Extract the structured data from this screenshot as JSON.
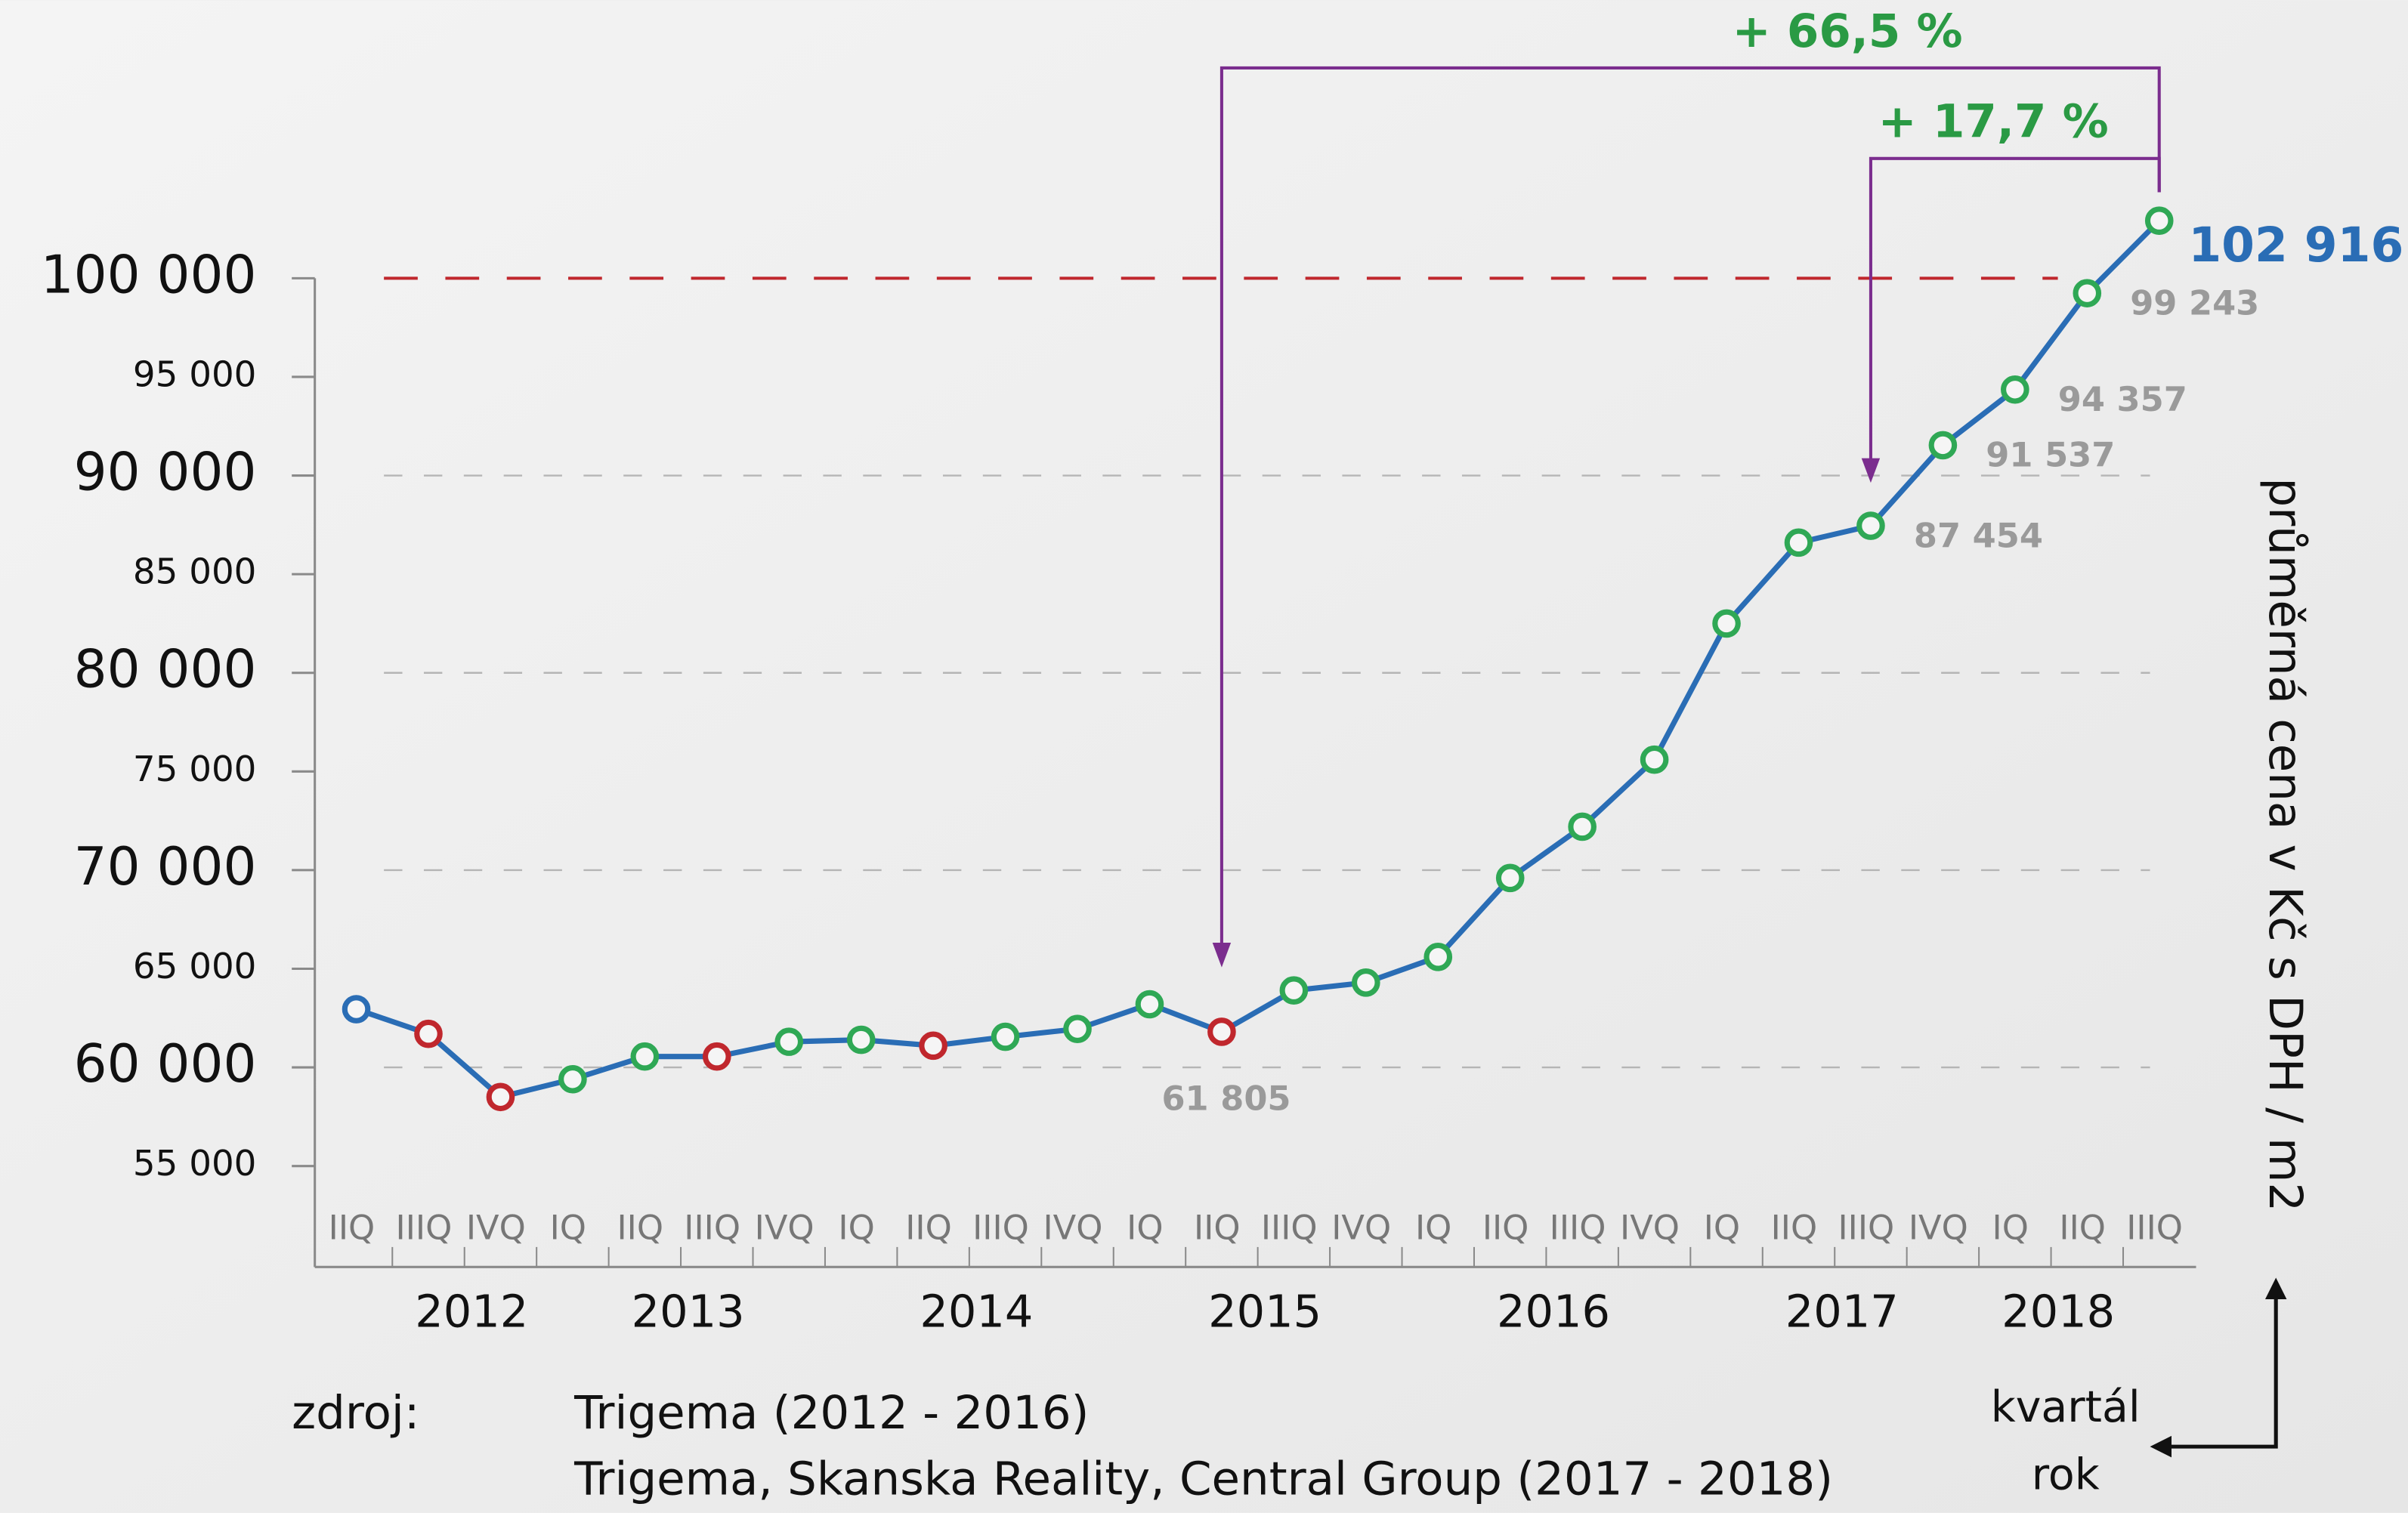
{
  "chart_data": {
    "type": "line",
    "categories": [
      "IIQ",
      "IIIQ",
      "IVQ",
      "IQ",
      "IIQ",
      "IIIQ",
      "IVQ",
      "IQ",
      "IIQ",
      "IIIQ",
      "IVQ",
      "IQ",
      "IIQ",
      "IIIQ",
      "IVQ",
      "IQ",
      "IIQ",
      "IIIQ",
      "IVQ",
      "IQ",
      "IIQ",
      "IIIQ",
      "IVQ",
      "IQ",
      "IIQ",
      "IIIQ"
    ],
    "years": [
      null,
      null,
      "2012",
      null,
      null,
      "2013",
      null,
      null,
      null,
      "2014",
      null,
      null,
      null,
      "2015",
      null,
      null,
      null,
      "2016",
      null,
      null,
      null,
      "2017",
      null,
      null,
      "2018",
      null
    ],
    "series": [
      {
        "name": "průměrná cena",
        "color": "#2a6db5",
        "values": [
          62950,
          61700,
          58500,
          59400,
          60550,
          60550,
          61300,
          61400,
          61100,
          61550,
          61950,
          63200,
          61805,
          63900,
          64300,
          65600,
          69600,
          72200,
          75600,
          82500,
          86600,
          87454,
          91537,
          94357,
          99243,
          102916
        ],
        "value_labels": [
          null,
          null,
          null,
          null,
          null,
          null,
          null,
          null,
          null,
          null,
          null,
          null,
          "61 805",
          null,
          null,
          null,
          null,
          null,
          null,
          null,
          null,
          "87 454",
          "91 537",
          "94 357",
          "99 243",
          "102 916"
        ],
        "point_colors": [
          "#2a6db5",
          "#c0272d",
          "#c0272d",
          "#2fa855",
          "#2fa855",
          "#c0272d",
          "#2fa855",
          "#2fa855",
          "#c0272d",
          "#2fa855",
          "#2fa855",
          "#2fa855",
          "#c0272d",
          "#2fa855",
          "#2fa855",
          "#2fa855",
          "#2fa855",
          "#2fa855",
          "#2fa855",
          "#2fa855",
          "#2fa855",
          "#2fa855",
          "#2fa855",
          "#2fa855",
          "#2fa855",
          "#2fa855"
        ]
      }
    ],
    "ylim": [
      52000,
      101500
    ],
    "yticks": [
      {
        "value": 55000,
        "label": "55 000"
      },
      {
        "value": 60000,
        "label": "60 000"
      },
      {
        "value": 65000,
        "label": "65 000"
      },
      {
        "value": 70000,
        "label": "70 000"
      },
      {
        "value": 75000,
        "label": "75 000"
      },
      {
        "value": 80000,
        "label": "80 000"
      },
      {
        "value": 85000,
        "label": "85 000"
      },
      {
        "value": 90000,
        "label": "90 000"
      },
      {
        "value": 95000,
        "label": "95 000"
      },
      {
        "value": 100000,
        "label": "100 000"
      }
    ],
    "reference_line": {
      "value": 100000,
      "color": "#c0272d"
    },
    "grid": true,
    "y_axis_label": "průměrná cena v Kč s DPH / m2",
    "x_axis_labels": [
      "kvartál",
      "rok"
    ],
    "annotations": [
      {
        "text": "+ 66,5 %",
        "from": 12,
        "to": 25,
        "color": "#2a9a44",
        "line_color": "#7b2d8e"
      },
      {
        "text": "+ 17,7 %",
        "from": 21,
        "to": 25,
        "color": "#2a9a44",
        "line_color": "#7b2d8e"
      }
    ],
    "source": {
      "label": "zdroj:",
      "lines": [
        "Trigema (2012 - 2016)",
        "Trigema, Skanska Reality, Central Group (2017 - 2018)"
      ]
    }
  }
}
